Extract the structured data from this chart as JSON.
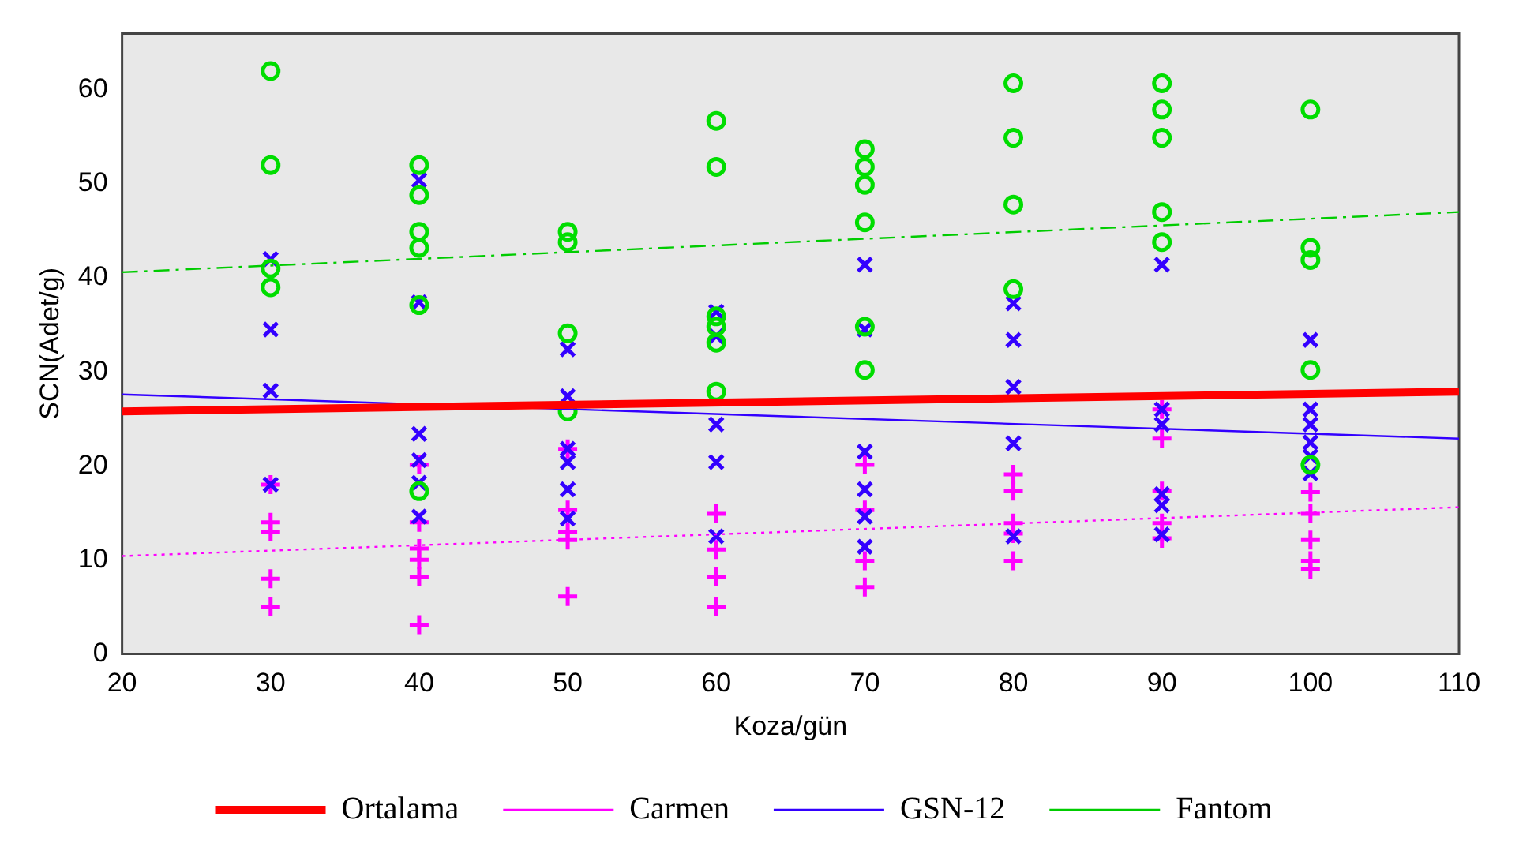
{
  "chart_data": {
    "type": "scatter",
    "xlabel": "Koza/gün",
    "ylabel": "SCN(Adet/g)",
    "xlim": [
      20,
      110
    ],
    "ylim": [
      0,
      66
    ],
    "xticks": [
      20,
      30,
      40,
      50,
      60,
      70,
      80,
      90,
      100,
      110
    ],
    "yticks": [
      0,
      10,
      20,
      30,
      40,
      50,
      60
    ],
    "grid": false,
    "legend": "bottom",
    "series": [
      {
        "marker": "circle",
        "color": "#00dd00",
        "x": [
          30,
          30,
          30,
          30,
          40,
          40,
          40,
          40,
          40,
          40,
          50,
          50,
          50,
          50,
          60,
          60,
          60,
          60,
          60,
          60,
          70,
          70,
          70,
          70,
          70,
          70,
          80,
          80,
          80,
          80,
          90,
          90,
          90,
          90,
          90,
          100,
          100,
          100,
          100,
          100
        ],
        "values": [
          62,
          52,
          41,
          39,
          52,
          48.8,
          44.9,
          43.2,
          37.1,
          17.3,
          44.9,
          43.8,
          34.1,
          25.8,
          56.7,
          51.8,
          35.9,
          34.8,
          33.1,
          27.9,
          53.7,
          51.8,
          49.9,
          45.9,
          34.8,
          30.2,
          60.7,
          54.9,
          47.8,
          38.8,
          60.7,
          57.9,
          54.9,
          47,
          43.8,
          57.9,
          43.2,
          41.9,
          30.2,
          20.1
        ]
      },
      {
        "marker": "cross",
        "color": "#3300ff",
        "x": [
          30,
          30,
          30,
          30,
          40,
          40,
          40,
          40,
          40,
          40,
          50,
          50,
          50,
          50,
          50,
          50,
          60,
          60,
          60,
          60,
          60,
          70,
          70,
          70,
          70,
          70,
          70,
          80,
          80,
          80,
          80,
          80,
          90,
          90,
          90,
          90,
          90,
          90,
          100,
          100,
          100,
          100,
          100,
          100
        ],
        "values": [
          42,
          34.5,
          28,
          18,
          50.4,
          37.4,
          23.4,
          20.6,
          18.2,
          14.6,
          32.4,
          27.4,
          21.8,
          20.4,
          17.5,
          14.4,
          36.4,
          33.8,
          24.4,
          20.4,
          12.5,
          41.4,
          34.5,
          21.5,
          17.5,
          14.6,
          11.4,
          37.3,
          33.4,
          28.4,
          22.4,
          12.5,
          41.4,
          26,
          24.4,
          17,
          15.8,
          12.7,
          33.4,
          26,
          24.4,
          22.5,
          21,
          19.2
        ]
      },
      {
        "marker": "plus",
        "color": "#ff00ff",
        "x": [
          30,
          30,
          30,
          30,
          30,
          40,
          40,
          40,
          40,
          40,
          40,
          50,
          50,
          50,
          50,
          50,
          60,
          60,
          60,
          60,
          70,
          70,
          70,
          70,
          80,
          80,
          80,
          80,
          80,
          90,
          90,
          90,
          90,
          90,
          100,
          100,
          100,
          100,
          100
        ],
        "values": [
          18,
          14,
          13,
          8,
          5,
          20.1,
          14,
          11.2,
          10,
          8.2,
          3.1,
          21.8,
          15.3,
          13,
          12.1,
          6.1,
          14.9,
          11.1,
          8.2,
          5,
          20.1,
          15.3,
          9.9,
          7.1,
          19.1,
          17.3,
          13.9,
          12.8,
          9.9,
          26,
          22.9,
          17.3,
          13.9,
          12.3,
          17.2,
          14.9,
          12.1,
          9.9,
          9
        ]
      },
      {
        "type": "line",
        "name": "Ortalama",
        "color": "#ff0000",
        "line_style": "solid",
        "marker": "none",
        "x": [
          20,
          110
        ],
        "values": [
          25.8,
          27.9
        ]
      },
      {
        "type": "line",
        "name": "Carmen",
        "color": "#ff00ff",
        "line_style": "dotted",
        "marker": "none",
        "x": [
          20,
          110
        ],
        "values": [
          10.4,
          15.6
        ]
      },
      {
        "type": "line",
        "name": "GSN-12",
        "color": "#3300ff",
        "line_style": "solid",
        "marker": "none",
        "x": [
          20,
          110
        ],
        "values": [
          27.6,
          22.9
        ]
      },
      {
        "type": "line",
        "name": "Fantom",
        "color": "#00cc00",
        "line_style": "dashed",
        "marker": "none",
        "x": [
          20,
          110
        ],
        "values": [
          40.6,
          47
        ]
      }
    ]
  }
}
